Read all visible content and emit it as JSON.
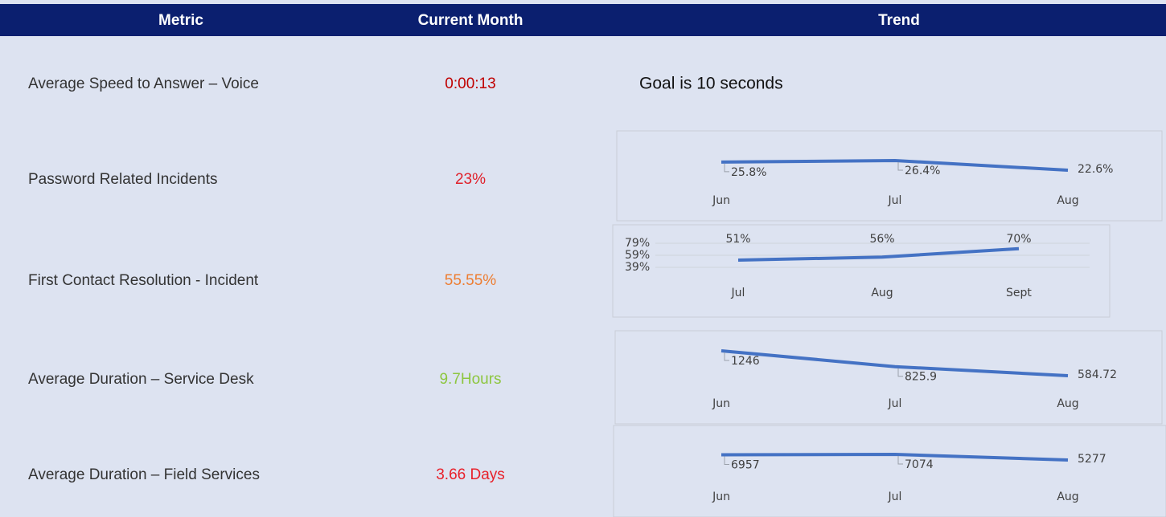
{
  "table": {
    "columns": [
      "Metric",
      "Current Month",
      "Trend"
    ],
    "rows": [
      {
        "metric": "Average Speed to Answer – Voice",
        "current": "0:00:13",
        "current_color": "#c00000",
        "trend_note": "Goal is 10 seconds"
      },
      {
        "metric": "Password Related Incidents",
        "current": "23%",
        "current_color": "#e0202a"
      },
      {
        "metric": "First Contact Resolution - Incident",
        "current": "55.55%",
        "current_color": "#ed7d31"
      },
      {
        "metric": "Average Duration – Service Desk",
        "current": "9.7Hours",
        "current_color": "#8dc63f"
      },
      {
        "metric": "Average Duration – Field Services",
        "current": "3.66 Days",
        "current_color": "#e8202a"
      }
    ]
  },
  "chart_data": [
    {
      "type": "line",
      "categories": [
        "Jun",
        "Jul",
        "Aug"
      ],
      "values": [
        25.8,
        26.4,
        22.6
      ],
      "value_labels": [
        "25.8%",
        "26.4%",
        "22.6%"
      ],
      "color": "#4472c4"
    },
    {
      "type": "line",
      "categories": [
        "Jul",
        "Aug",
        "Sept"
      ],
      "values": [
        51,
        56,
        70
      ],
      "value_labels": [
        "51%",
        "56%",
        "70%"
      ],
      "color": "#4472c4",
      "ylim": [
        39,
        79
      ],
      "yticks": [
        {
          "value": 79,
          "label": "79%"
        },
        {
          "value": 59,
          "label": "59%"
        },
        {
          "value": 39,
          "label": "39%"
        }
      ]
    },
    {
      "type": "line",
      "categories": [
        "Jun",
        "Jul",
        "Aug"
      ],
      "values": [
        1246,
        825.9,
        584.72
      ],
      "color": "#4472c4"
    },
    {
      "type": "line",
      "categories": [
        "Jun",
        "Jul",
        "Aug"
      ],
      "values": [
        6957,
        7074,
        5277
      ],
      "color": "#4472c4"
    }
  ]
}
